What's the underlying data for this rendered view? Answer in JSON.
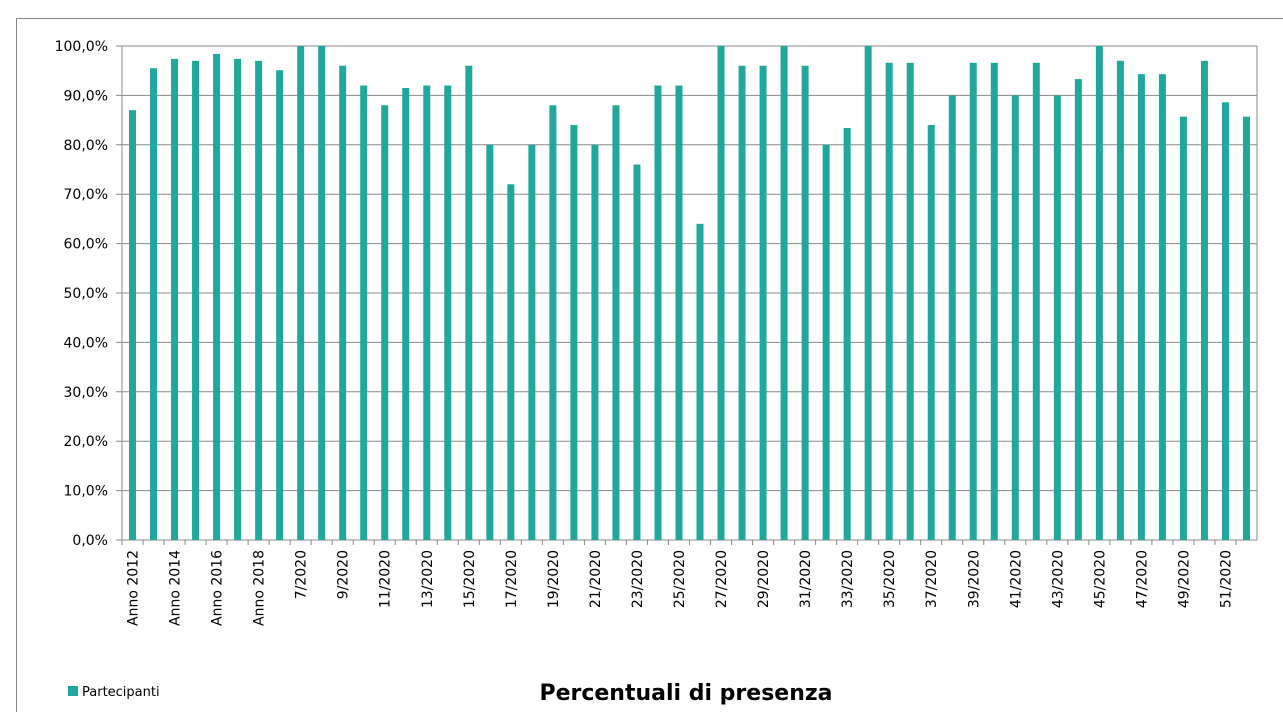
{
  "chart_data": {
    "type": "bar",
    "title": "Percentuali di presenza",
    "categories": [
      "Anno 2012",
      null,
      "Anno 2014",
      null,
      "Anno 2016",
      null,
      "Anno 2018",
      null,
      "7/2020",
      null,
      "9/2020",
      null,
      "11/2020",
      null,
      "13/2020",
      null,
      "15/2020",
      null,
      "17/2020",
      null,
      "19/2020",
      null,
      "21/2020",
      null,
      "23/2020",
      null,
      "25/2020",
      null,
      "27/2020",
      null,
      "29/2020",
      null,
      "31/2020",
      null,
      "33/2020",
      null,
      "35/2020",
      null,
      "37/2020",
      null,
      "39/2020",
      null,
      "41/2020",
      null,
      "43/2020",
      null,
      "45/2020",
      null,
      "47/2020",
      null,
      "49/2020",
      null,
      "51/2020",
      null
    ],
    "series": [
      {
        "name": "Partecipanti",
        "color": "#1fa89b",
        "values": [
          87,
          95.5,
          97.4,
          97,
          98.4,
          97.4,
          97,
          95.1,
          100,
          100,
          96,
          92,
          88,
          91.5,
          92,
          92,
          96,
          80,
          72,
          80,
          88,
          84,
          80,
          88,
          76,
          92,
          92,
          64,
          100,
          96,
          96,
          100,
          96,
          80,
          83.4,
          100,
          96.6,
          96.6,
          84,
          90,
          96.6,
          96.6,
          90,
          96.6,
          90,
          93.3,
          100,
          97,
          94.3,
          94.3,
          85.7,
          97,
          88.6,
          85.7
        ]
      }
    ],
    "ylim": [
      0,
      100
    ],
    "yticks": [
      {
        "value": 0,
        "label": "0,0%"
      },
      {
        "value": 10,
        "label": "10,0%"
      },
      {
        "value": 20,
        "label": "20,0%"
      },
      {
        "value": 30,
        "label": "30,0%"
      },
      {
        "value": 40,
        "label": "40,0%"
      },
      {
        "value": 50,
        "label": "50,0%"
      },
      {
        "value": 60,
        "label": "60,0%"
      },
      {
        "value": 70,
        "label": "70,0%"
      },
      {
        "value": 80,
        "label": "80,0%"
      },
      {
        "value": 90,
        "label": "90,0%"
      },
      {
        "value": 100,
        "label": "100,0%"
      }
    ],
    "grid": true,
    "legend": "bottom-left"
  }
}
